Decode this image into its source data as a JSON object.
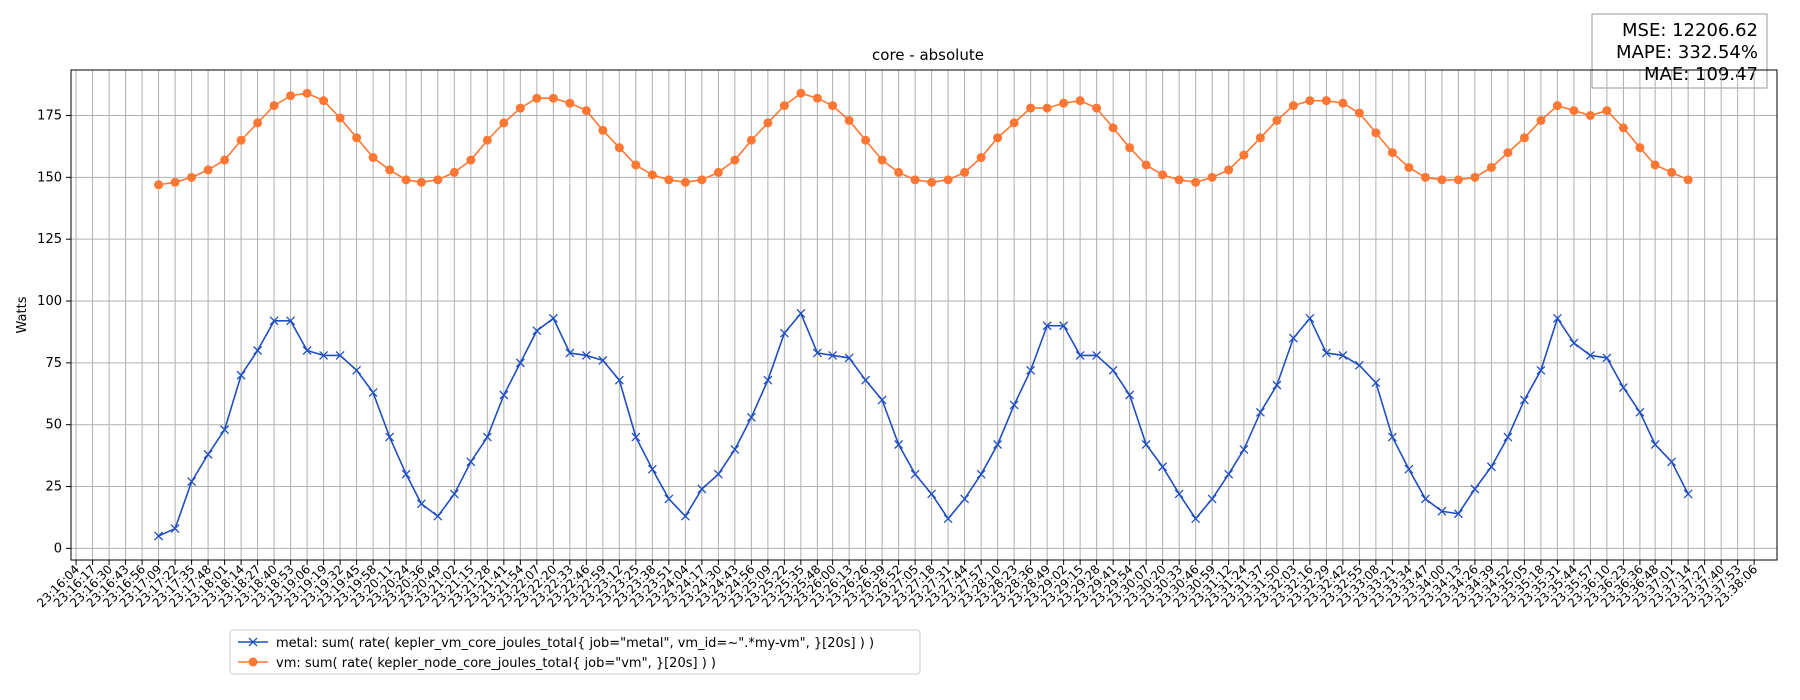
{
  "chart_data": {
    "type": "line",
    "title": "core - absolute",
    "y_label": "Watts",
    "annotations": [
      "MSE: 12206.62",
      "MAPE: 332.54%",
      "MAE: 109.47"
    ],
    "xlim": [
      "23:16:00",
      "23:38:24"
    ],
    "xticks": [
      "23:16:04",
      "23:16:17",
      "23:16:30",
      "23:16:43",
      "23:16:56",
      "23:17:09",
      "23:17:22",
      "23:17:35",
      "23:17:48",
      "23:18:01",
      "23:18:14",
      "23:18:27",
      "23:18:40",
      "23:18:53",
      "23:19:06",
      "23:19:19",
      "23:19:32",
      "23:19:45",
      "23:19:58",
      "23:20:11",
      "23:20:24",
      "23:20:36",
      "23:20:49",
      "23:21:02",
      "23:21:15",
      "23:21:28",
      "23:21:41",
      "23:21:54",
      "23:22:07",
      "23:22:20",
      "23:22:33",
      "23:22:46",
      "23:22:59",
      "23:23:12",
      "23:23:25",
      "23:23:38",
      "23:23:51",
      "23:24:04",
      "23:24:17",
      "23:24:30",
      "23:24:43",
      "23:24:56",
      "23:25:09",
      "23:25:22",
      "23:25:35",
      "23:25:48",
      "23:26:00",
      "23:26:13",
      "23:26:26",
      "23:26:39",
      "23:26:52",
      "23:27:05",
      "23:27:18",
      "23:27:31",
      "23:27:44",
      "23:27:57",
      "23:28:10",
      "23:28:23",
      "23:28:36",
      "23:28:49",
      "23:29:02",
      "23:29:15",
      "23:29:28",
      "23:29:41",
      "23:29:54",
      "23:30:07",
      "23:30:20",
      "23:30:33",
      "23:30:46",
      "23:30:59",
      "23:31:12",
      "23:31:24",
      "23:31:37",
      "23:31:50",
      "23:32:03",
      "23:32:16",
      "23:32:29",
      "23:32:42",
      "23:32:55",
      "23:33:08",
      "23:33:21",
      "23:33:34",
      "23:33:47",
      "23:34:00",
      "23:34:13",
      "23:34:26",
      "23:34:39",
      "23:34:52",
      "23:35:05",
      "23:35:18",
      "23:35:31",
      "23:35:44",
      "23:35:57",
      "23:36:10",
      "23:36:23",
      "23:36:36",
      "23:36:48",
      "23:37:01",
      "23:37:14",
      "23:37:27",
      "23:37:40",
      "23:37:53",
      "23:38:06"
    ],
    "ylim": [
      -4.7,
      193.4
    ],
    "yticks": [
      0,
      25,
      50,
      75,
      100,
      125,
      150,
      175
    ],
    "grid": true,
    "legend": "below",
    "x": [
      "23:17:09",
      "23:17:22",
      "23:17:35",
      "23:17:48",
      "23:18:01",
      "23:18:14",
      "23:18:27",
      "23:18:40",
      "23:18:53",
      "23:19:06",
      "23:19:19",
      "23:19:32",
      "23:19:45",
      "23:19:58",
      "23:20:11",
      "23:20:24",
      "23:20:36",
      "23:20:49",
      "23:21:02",
      "23:21:15",
      "23:21:28",
      "23:21:41",
      "23:21:54",
      "23:22:07",
      "23:22:20",
      "23:22:33",
      "23:22:46",
      "23:22:59",
      "23:23:12",
      "23:23:25",
      "23:23:38",
      "23:23:51",
      "23:24:04",
      "23:24:17",
      "23:24:30",
      "23:24:43",
      "23:24:56",
      "23:25:09",
      "23:25:22",
      "23:25:35",
      "23:25:48",
      "23:26:00",
      "23:26:13",
      "23:26:26",
      "23:26:39",
      "23:26:52",
      "23:27:05",
      "23:27:18",
      "23:27:31",
      "23:27:44",
      "23:27:57",
      "23:28:10",
      "23:28:23",
      "23:28:36",
      "23:28:49",
      "23:29:02",
      "23:29:15",
      "23:29:28",
      "23:29:41",
      "23:29:54",
      "23:30:07",
      "23:30:20",
      "23:30:33",
      "23:30:46",
      "23:30:59",
      "23:31:12",
      "23:31:24",
      "23:31:37",
      "23:31:50",
      "23:32:03",
      "23:32:16",
      "23:32:29",
      "23:32:42",
      "23:32:55",
      "23:33:08",
      "23:33:21",
      "23:33:34",
      "23:33:47",
      "23:34:00",
      "23:34:13",
      "23:34:26",
      "23:34:39",
      "23:34:52",
      "23:35:05",
      "23:35:18",
      "23:35:31",
      "23:35:44",
      "23:35:57",
      "23:36:10",
      "23:36:23",
      "23:36:36",
      "23:36:48",
      "23:37:01",
      "23:37:14"
    ],
    "series": [
      {
        "name": "metal: sum( rate( kepler_vm_core_joules_total{ job=\"metal\", vm_id=~\".*my-vm\", }[20s] ) )",
        "color": "#1f4fbf",
        "marker": "x",
        "values": [
          5,
          8,
          27,
          38,
          48,
          70,
          80,
          92,
          92,
          80,
          78,
          78,
          72,
          63,
          45,
          30,
          18,
          13,
          22,
          35,
          45,
          62,
          75,
          88,
          93,
          79,
          78,
          76,
          68,
          45,
          32,
          20,
          13,
          24,
          30,
          40,
          53,
          68,
          87,
          95,
          79,
          78,
          77,
          68,
          60,
          42,
          30,
          22,
          12,
          20,
          30,
          42,
          58,
          72,
          90,
          90,
          78,
          78,
          72,
          62,
          42,
          33,
          22,
          12,
          20,
          30,
          40,
          55,
          66,
          85,
          93,
          79,
          78,
          74,
          67,
          45,
          32,
          20,
          15,
          14,
          24,
          33,
          45,
          60,
          72,
          93,
          83,
          78,
          77,
          65,
          55,
          42,
          35,
          22
        ]
      },
      {
        "name": "vm: sum( rate( kepler_node_core_joules_total{ job=\"vm\", }[20s] ) )",
        "color": "#ff7733",
        "marker": "o",
        "values": [
          147,
          148,
          150,
          153,
          157,
          165,
          172,
          179,
          183,
          184,
          181,
          174,
          166,
          158,
          153,
          149,
          148,
          149,
          152,
          157,
          165,
          172,
          178,
          182,
          182,
          180,
          177,
          169,
          162,
          155,
          151,
          149,
          148,
          149,
          152,
          157,
          165,
          172,
          179,
          184,
          182,
          179,
          173,
          165,
          157,
          152,
          149,
          148,
          149,
          152,
          158,
          166,
          172,
          178,
          178,
          180,
          181,
          178,
          170,
          162,
          155,
          151,
          149,
          148,
          150,
          153,
          159,
          166,
          173,
          179,
          181,
          181,
          180,
          176,
          168,
          160,
          154,
          150,
          149,
          149,
          150,
          154,
          160,
          166,
          173,
          179,
          177,
          175,
          177,
          170,
          162,
          155,
          152,
          149
        ]
      }
    ]
  }
}
